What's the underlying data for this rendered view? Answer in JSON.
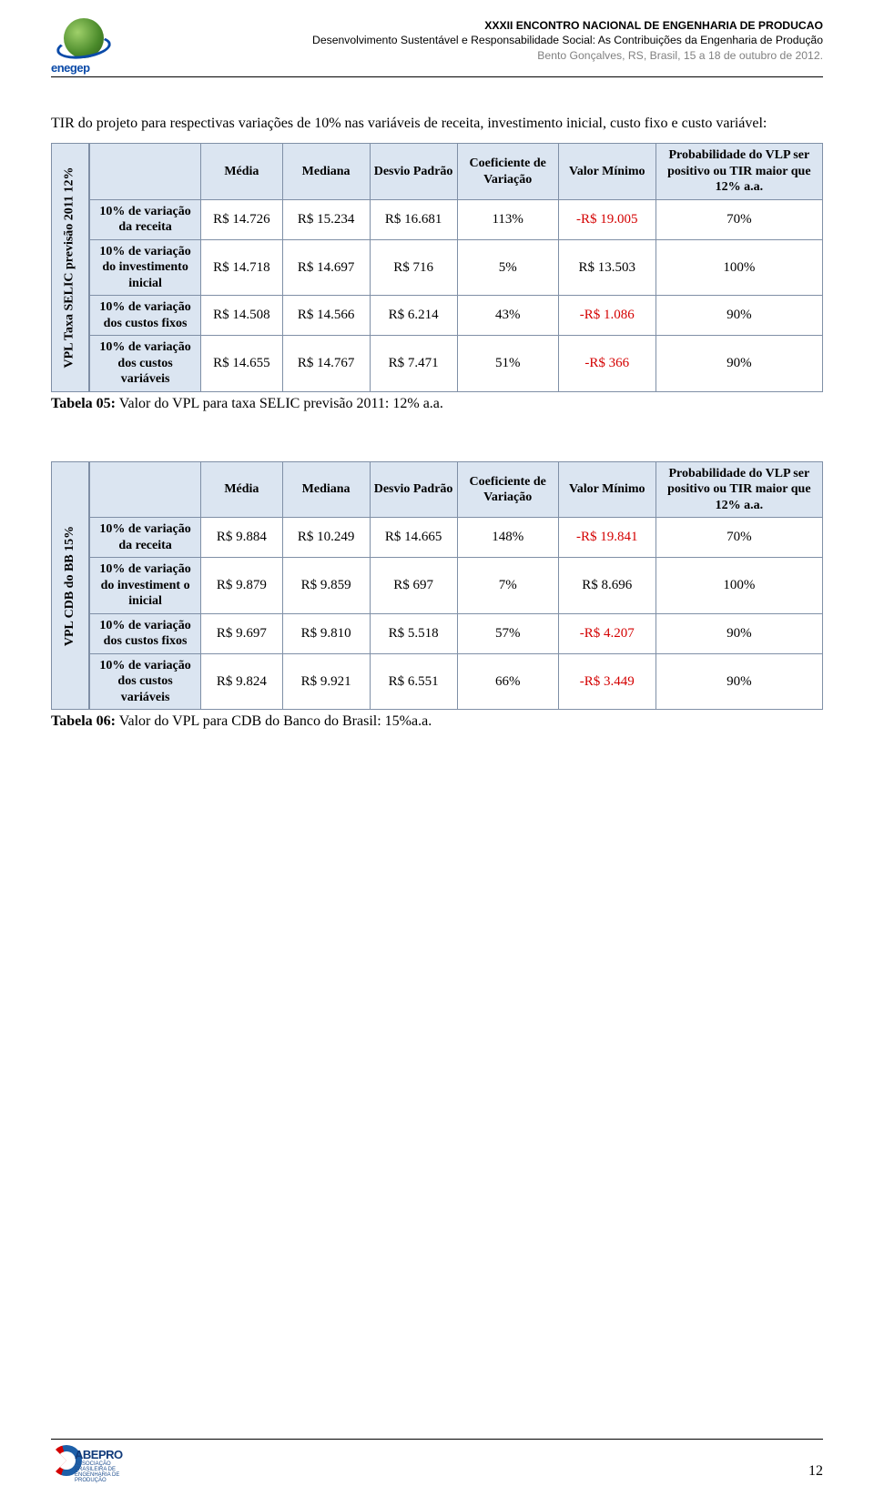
{
  "header": {
    "logo_label": "enegep",
    "line1": "XXXII ENCONTRO NACIONAL DE ENGENHARIA DE PRODUCAO",
    "line2": "Desenvolvimento Sustentável e Responsabilidade Social: As Contribuições da Engenharia de Produção",
    "line3": "Bento Gonçalves, RS, Brasil, 15 a 18 de outubro de 2012."
  },
  "paragraph": "TIR do projeto para respectivas variações de 10% nas variáveis de receita, investimento inicial, custo fixo e custo variável:",
  "table_columns": {
    "c1": "Média",
    "c2": "Mediana",
    "c3": "Desvio Padrão",
    "c4": "Coeficiente de Variação",
    "c5": "Valor Mínimo",
    "c6": "Probabilidade do VLP ser positivo ou TIR maior que 12% a.a."
  },
  "row_labels": {
    "r1": "10% de variação da receita",
    "r2": "10% de variação do investimento inicial",
    "r2b": "10% de variação do investiment o inicial",
    "r3": "10% de variação dos custos fixos",
    "r4": "10% de variação dos custos variáveis"
  },
  "table1": {
    "vertical_label": "VPL  Taxa SELIC previsão 2011 12%",
    "rows": [
      {
        "media": "R$ 14.726",
        "mediana": "R$ 15.234",
        "desvio": "R$ 16.681",
        "coef": "113%",
        "vmin": "-R$ 19.005",
        "vmin_neg": true,
        "prob": "70%"
      },
      {
        "media": "R$ 14.718",
        "mediana": "R$ 14.697",
        "desvio": "R$ 716",
        "coef": "5%",
        "vmin": "R$ 13.503",
        "vmin_neg": false,
        "prob": "100%"
      },
      {
        "media": "R$ 14.508",
        "mediana": "R$ 14.566",
        "desvio": "R$ 6.214",
        "coef": "43%",
        "vmin": "-R$ 1.086",
        "vmin_neg": true,
        "prob": "90%"
      },
      {
        "media": "R$ 14.655",
        "mediana": "R$ 14.767",
        "desvio": "R$ 7.471",
        "coef": "51%",
        "vmin": "-R$ 366",
        "vmin_neg": true,
        "prob": "90%"
      }
    ],
    "caption_label": "Tabela 05:",
    "caption_text": " Valor do VPL para taxa SELIC previsão 2011: 12% a.a."
  },
  "table2": {
    "vertical_label": "VPL CDB do BB 15%",
    "rows": [
      {
        "media": "R$ 9.884",
        "mediana": "R$ 10.249",
        "desvio": "R$ 14.665",
        "coef": "148%",
        "vmin": "-R$ 19.841",
        "vmin_neg": true,
        "prob": "70%"
      },
      {
        "media": "R$ 9.879",
        "mediana": "R$ 9.859",
        "desvio": "R$ 697",
        "coef": "7%",
        "vmin": "R$ 8.696",
        "vmin_neg": false,
        "prob": "100%"
      },
      {
        "media": "R$ 9.697",
        "mediana": "R$ 9.810",
        "desvio": "R$ 5.518",
        "coef": "57%",
        "vmin": "-R$ 4.207",
        "vmin_neg": true,
        "prob": "90%"
      },
      {
        "media": "R$ 9.824",
        "mediana": "R$ 9.921",
        "desvio": "R$ 6.551",
        "coef": "66%",
        "vmin": "-R$ 3.449",
        "vmin_neg": true,
        "prob": "90%"
      }
    ],
    "caption_label": "Tabela 06:",
    "caption_text": " Valor do VPL para CDB do Banco do Brasil: 15%a.a."
  },
  "footer": {
    "logo_text1": "ABEPRO",
    "logo_text2": "ASSOCIAÇÃO BRASILEIRA DE ENGENHARIA DE PRODUÇÃO",
    "page_number": "12"
  },
  "colors": {
    "header_bg": "#dbe5f1",
    "border": "#7f8fa6",
    "negative": "#d40000",
    "header_grey": "#808080"
  }
}
